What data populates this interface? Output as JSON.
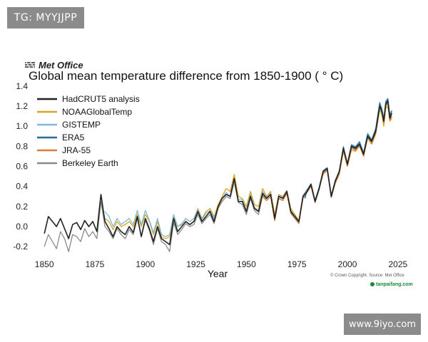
{
  "watermarks": {
    "top": "TG: MYYJJPP",
    "bottom": "www.9iyo.com"
  },
  "brand": {
    "name": "Met Office",
    "icon": "met-office-logo-icon"
  },
  "footer": {
    "credit": "© Crown Copyright. Source: Met Office",
    "site": "tanpaifang.com"
  },
  "chart_data": {
    "type": "line",
    "title": "Global mean temperature difference from 1850-1900 ( ° C)",
    "xlabel": "Year",
    "ylabel": "",
    "xlim": [
      1845,
      2030
    ],
    "ylim": [
      -0.27,
      1.42
    ],
    "xticks": [
      1850,
      1875,
      1900,
      1925,
      1950,
      1975,
      2000,
      2025
    ],
    "yticks": [
      -0.2,
      0.0,
      0.2,
      0.4,
      0.6,
      0.8,
      1.0,
      1.2,
      1.4
    ],
    "ytick_labels": [
      "-0.2",
      "0.0",
      "0.2",
      "0.4",
      "0.6",
      "0.8",
      "1.0",
      "1.2",
      "1.4"
    ],
    "grid": false,
    "legend_position": "top-left",
    "series": [
      {
        "name": "HadCRUT5 analysis",
        "color": "#222222",
        "x": [
          1850,
          1852,
          1854,
          1856,
          1858,
          1860,
          1862,
          1864,
          1866,
          1868,
          1870,
          1872,
          1874,
          1876,
          1878,
          1880,
          1882,
          1884,
          1886,
          1888,
          1890,
          1892,
          1894,
          1896,
          1898,
          1900,
          1902,
          1904,
          1906,
          1908,
          1910,
          1912,
          1914,
          1916,
          1918,
          1920,
          1922,
          1924,
          1926,
          1928,
          1930,
          1932,
          1934,
          1936,
          1938,
          1940,
          1942,
          1944,
          1946,
          1948,
          1950,
          1952,
          1954,
          1956,
          1958,
          1960,
          1962,
          1964,
          1966,
          1968,
          1970,
          1972,
          1974,
          1976,
          1978,
          1980,
          1982,
          1984,
          1986,
          1988,
          1990,
          1992,
          1994,
          1996,
          1998,
          2000,
          2002,
          2004,
          2006,
          2008,
          2010,
          2012,
          2014,
          2016,
          2017,
          2018,
          2019,
          2020,
          2021,
          2022
        ],
        "values": [
          -0.07,
          0.1,
          0.05,
          0.0,
          0.08,
          -0.02,
          -0.12,
          0.02,
          0.04,
          -0.03,
          0.06,
          0.0,
          0.05,
          -0.05,
          0.32,
          0.05,
          -0.02,
          -0.1,
          0.0,
          -0.05,
          -0.08,
          0.0,
          -0.06,
          0.1,
          -0.1,
          0.08,
          -0.02,
          -0.15,
          0.0,
          -0.12,
          -0.15,
          -0.18,
          0.08,
          -0.05,
          0.0,
          0.05,
          0.02,
          0.05,
          0.15,
          0.05,
          0.1,
          0.15,
          0.05,
          0.2,
          0.28,
          0.32,
          0.3,
          0.48,
          0.25,
          0.25,
          0.15,
          0.3,
          0.18,
          0.15,
          0.33,
          0.28,
          0.32,
          0.08,
          0.3,
          0.28,
          0.35,
          0.15,
          0.1,
          0.05,
          0.3,
          0.35,
          0.42,
          0.25,
          0.38,
          0.55,
          0.58,
          0.3,
          0.45,
          0.55,
          0.78,
          0.62,
          0.8,
          0.78,
          0.82,
          0.72,
          0.9,
          0.85,
          0.95,
          1.2,
          1.15,
          1.05,
          1.22,
          1.25,
          1.08,
          1.13
        ]
      },
      {
        "name": "NOAAGlobalTemp",
        "color": "#d9a521",
        "x": [
          1880,
          1882,
          1884,
          1886,
          1888,
          1890,
          1892,
          1894,
          1896,
          1898,
          1900,
          1902,
          1904,
          1906,
          1908,
          1910,
          1912,
          1914,
          1916,
          1918,
          1920,
          1922,
          1924,
          1926,
          1928,
          1930,
          1932,
          1934,
          1936,
          1938,
          1940,
          1942,
          1944,
          1946,
          1948,
          1950,
          1952,
          1954,
          1956,
          1958,
          1960,
          1962,
          1964,
          1966,
          1968,
          1970,
          1972,
          1974,
          1976,
          1978,
          1980,
          1982,
          1984,
          1986,
          1988,
          1990,
          1992,
          1994,
          1996,
          1998,
          2000,
          2002,
          2004,
          2006,
          2008,
          2010,
          2012,
          2014,
          2016,
          2017,
          2018,
          2019,
          2020,
          2021,
          2022
        ],
        "values": [
          0.08,
          0.05,
          -0.03,
          0.05,
          0.0,
          0.02,
          0.05,
          0.0,
          0.12,
          0.0,
          0.12,
          0.05,
          -0.08,
          0.05,
          -0.1,
          -0.12,
          -0.1,
          0.1,
          0.0,
          0.02,
          0.08,
          0.05,
          0.08,
          0.18,
          0.08,
          0.15,
          0.18,
          0.1,
          0.22,
          0.3,
          0.38,
          0.35,
          0.52,
          0.3,
          0.28,
          0.2,
          0.35,
          0.22,
          0.2,
          0.38,
          0.3,
          0.35,
          0.12,
          0.32,
          0.3,
          0.36,
          0.18,
          0.12,
          0.06,
          0.3,
          0.36,
          0.42,
          0.25,
          0.38,
          0.52,
          0.56,
          0.3,
          0.43,
          0.52,
          0.75,
          0.6,
          0.76,
          0.75,
          0.8,
          0.7,
          0.88,
          0.82,
          0.92,
          1.16,
          1.12,
          1.0,
          1.18,
          1.2,
          1.05,
          1.08
        ]
      },
      {
        "name": "GISTEMP",
        "color": "#7fb8d8",
        "x": [
          1880,
          1882,
          1884,
          1886,
          1888,
          1890,
          1892,
          1894,
          1896,
          1898,
          1900,
          1902,
          1904,
          1906,
          1908,
          1910,
          1912,
          1914,
          1916,
          1918,
          1920,
          1922,
          1924,
          1926,
          1928,
          1930,
          1932,
          1934,
          1936,
          1938,
          1940,
          1942,
          1944,
          1946,
          1948,
          1950,
          1952,
          1954,
          1956,
          1958,
          1960,
          1962,
          1964,
          1966,
          1968,
          1970,
          1972,
          1974,
          1976,
          1978,
          1980,
          1982,
          1984,
          1986,
          1988,
          1990,
          1992,
          1994,
          1996,
          1998,
          2000,
          2002,
          2004,
          2006,
          2008,
          2010,
          2012,
          2014,
          2016,
          2017,
          2018,
          2019,
          2020,
          2021,
          2022
        ],
        "values": [
          0.15,
          0.1,
          0.0,
          0.08,
          0.02,
          0.05,
          0.08,
          0.02,
          0.16,
          0.02,
          0.16,
          0.06,
          -0.06,
          0.08,
          -0.08,
          -0.1,
          -0.08,
          0.12,
          0.0,
          0.03,
          0.08,
          0.05,
          0.08,
          0.17,
          0.07,
          0.13,
          0.16,
          0.08,
          0.2,
          0.28,
          0.34,
          0.3,
          0.45,
          0.27,
          0.27,
          0.16,
          0.32,
          0.19,
          0.16,
          0.35,
          0.29,
          0.33,
          0.09,
          0.31,
          0.29,
          0.36,
          0.16,
          0.1,
          0.05,
          0.31,
          0.37,
          0.43,
          0.26,
          0.39,
          0.56,
          0.59,
          0.31,
          0.46,
          0.56,
          0.8,
          0.62,
          0.82,
          0.8,
          0.85,
          0.74,
          0.93,
          0.87,
          0.98,
          1.24,
          1.18,
          1.08,
          1.25,
          1.28,
          1.12,
          1.16
        ]
      },
      {
        "name": "ERA5",
        "color": "#1f6e94",
        "x": [
          1979,
          1980,
          1982,
          1984,
          1986,
          1988,
          1990,
          1992,
          1994,
          1996,
          1998,
          2000,
          2002,
          2004,
          2006,
          2008,
          2010,
          2012,
          2014,
          2016,
          2017,
          2018,
          2019,
          2020,
          2021,
          2022
        ],
        "values": [
          0.28,
          0.36,
          0.42,
          0.26,
          0.39,
          0.55,
          0.58,
          0.31,
          0.46,
          0.55,
          0.79,
          0.63,
          0.81,
          0.79,
          0.84,
          0.73,
          0.92,
          0.86,
          0.97,
          1.23,
          1.17,
          1.07,
          1.24,
          1.27,
          1.1,
          1.15
        ]
      },
      {
        "name": "JRA-55",
        "color": "#d97a35",
        "x": [
          1958,
          1960,
          1962,
          1964,
          1966,
          1968,
          1970,
          1972,
          1974,
          1976,
          1978,
          1980,
          1982,
          1984,
          1986,
          1988,
          1990,
          1992,
          1994,
          1996,
          1998,
          2000,
          2002,
          2004,
          2006,
          2008,
          2010,
          2012,
          2014,
          2016,
          2017,
          2018,
          2019,
          2020,
          2021,
          2022
        ],
        "values": [
          0.3,
          0.26,
          0.3,
          0.06,
          0.28,
          0.26,
          0.33,
          0.14,
          0.09,
          0.04,
          0.28,
          0.34,
          0.4,
          0.24,
          0.37,
          0.53,
          0.56,
          0.29,
          0.44,
          0.53,
          0.76,
          0.6,
          0.78,
          0.76,
          0.81,
          0.7,
          0.89,
          0.83,
          0.93,
          1.19,
          1.14,
          1.03,
          1.2,
          1.23,
          1.06,
          1.1
        ]
      },
      {
        "name": "Berkeley Earth",
        "color": "#8a8a8a",
        "x": [
          1850,
          1852,
          1854,
          1856,
          1858,
          1860,
          1862,
          1864,
          1866,
          1868,
          1870,
          1872,
          1874,
          1876,
          1878,
          1880,
          1882,
          1884,
          1886,
          1888,
          1890,
          1892,
          1894,
          1896,
          1898,
          1900,
          1902,
          1904,
          1906,
          1908,
          1910,
          1912,
          1914,
          1916,
          1918,
          1920,
          1922,
          1924,
          1926,
          1928,
          1930,
          1932,
          1934,
          1936,
          1938,
          1940,
          1942,
          1944,
          1946,
          1948,
          1950,
          1952,
          1954,
          1956,
          1958,
          1960,
          1962,
          1964,
          1966,
          1968,
          1970,
          1972,
          1974,
          1976,
          1978,
          1980,
          1982,
          1984,
          1986,
          1988,
          1990,
          1992,
          1994,
          1996,
          1998,
          2000,
          2002,
          2004,
          2006,
          2008,
          2010,
          2012,
          2014,
          2016,
          2017,
          2018,
          2019,
          2020,
          2021,
          2022
        ],
        "values": [
          -0.2,
          -0.08,
          -0.15,
          -0.22,
          -0.05,
          -0.12,
          -0.25,
          -0.08,
          -0.1,
          -0.15,
          -0.02,
          -0.1,
          -0.05,
          -0.12,
          0.25,
          0.0,
          -0.05,
          -0.12,
          -0.02,
          -0.08,
          -0.12,
          -0.03,
          -0.08,
          0.08,
          -0.1,
          0.06,
          -0.04,
          -0.18,
          -0.02,
          -0.15,
          -0.18,
          -0.25,
          0.04,
          -0.08,
          -0.03,
          0.03,
          0.0,
          0.02,
          0.12,
          0.03,
          0.08,
          0.12,
          0.03,
          0.18,
          0.25,
          0.3,
          0.28,
          0.44,
          0.24,
          0.22,
          0.12,
          0.28,
          0.16,
          0.12,
          0.31,
          0.26,
          0.3,
          0.06,
          0.28,
          0.26,
          0.33,
          0.13,
          0.08,
          0.03,
          0.28,
          0.34,
          0.41,
          0.24,
          0.37,
          0.54,
          0.57,
          0.29,
          0.44,
          0.54,
          0.77,
          0.61,
          0.79,
          0.77,
          0.82,
          0.71,
          0.9,
          0.84,
          0.95,
          1.21,
          1.16,
          1.05,
          1.22,
          1.26,
          1.09,
          1.13
        ]
      }
    ]
  }
}
